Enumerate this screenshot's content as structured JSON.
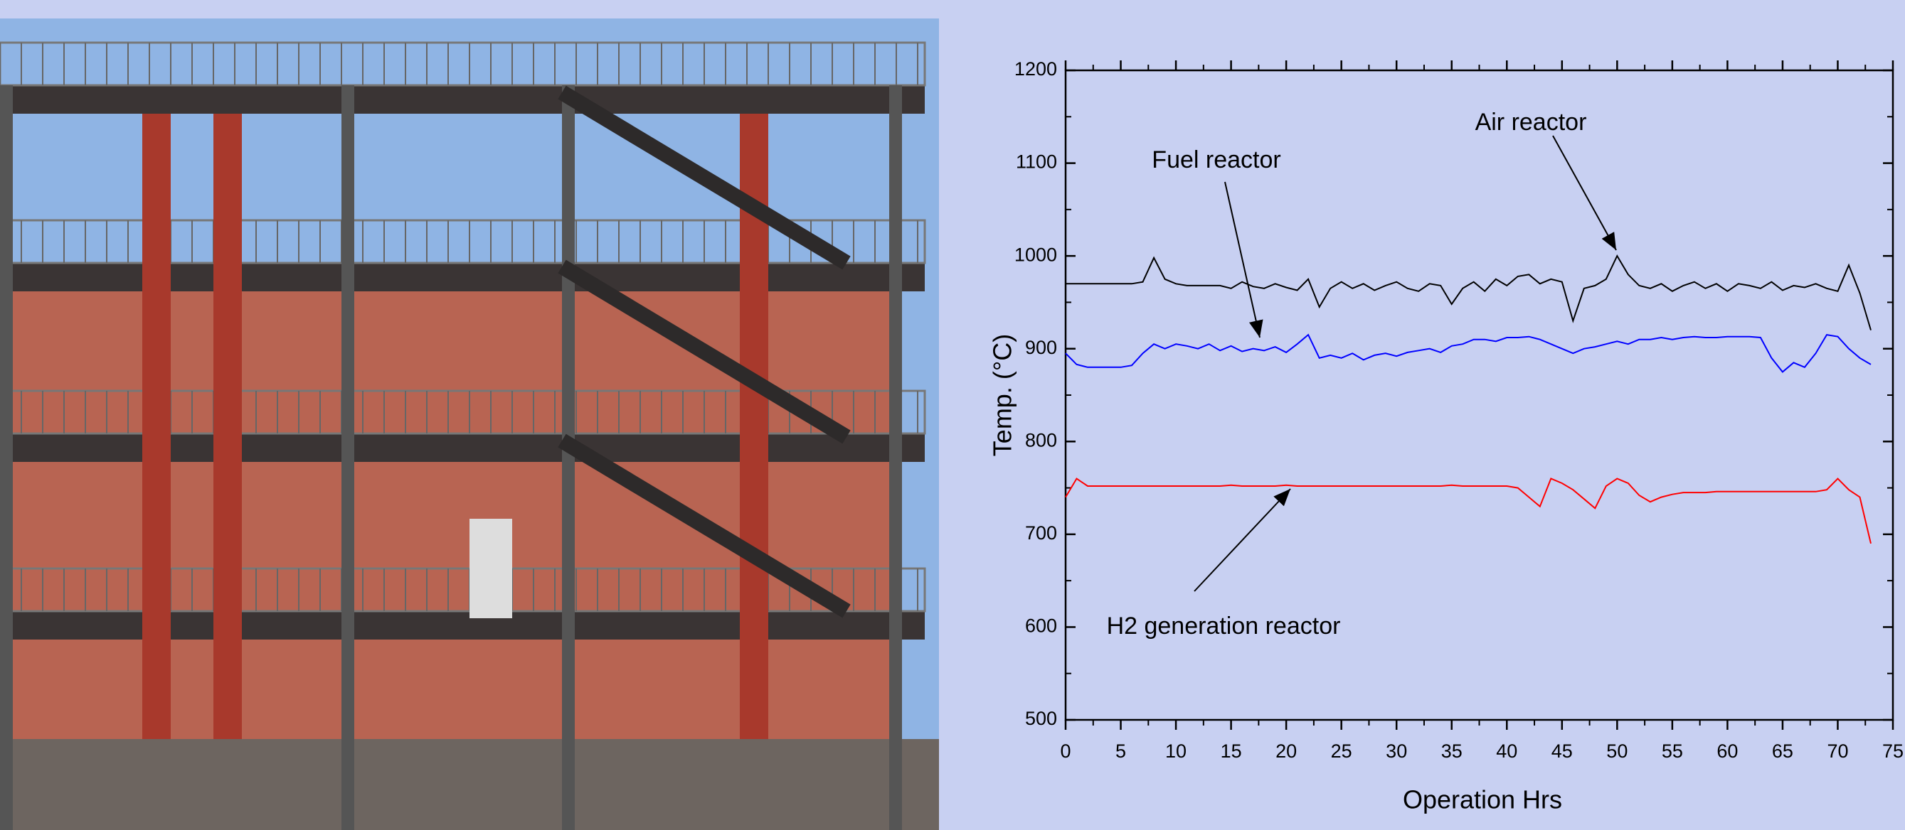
{
  "chart_data": {
    "type": "line",
    "xlabel": "Operation Hrs",
    "ylabel": "Temp. (°C)",
    "x": [
      0,
      1,
      2,
      3,
      4,
      5,
      6,
      7,
      8,
      9,
      10,
      11,
      12,
      13,
      14,
      15,
      16,
      17,
      18,
      19,
      20,
      21,
      22,
      23,
      24,
      25,
      26,
      27,
      28,
      29,
      30,
      31,
      32,
      33,
      34,
      35,
      36,
      37,
      38,
      39,
      40,
      41,
      42,
      43,
      44,
      45,
      46,
      47,
      48,
      49,
      50,
      51,
      52,
      53,
      54,
      55,
      56,
      57,
      58,
      59,
      60,
      61,
      62,
      63,
      64,
      65,
      66,
      67,
      68,
      69,
      70,
      71,
      72,
      73
    ],
    "series": [
      {
        "color": "#000000",
        "values": [
          970,
          970,
          970,
          970,
          970,
          970,
          970,
          972,
          998,
          975,
          970,
          968,
          968,
          968,
          968,
          965,
          972,
          967,
          965,
          970,
          966,
          963,
          975,
          945,
          965,
          972,
          965,
          970,
          963,
          968,
          972,
          965,
          962,
          970,
          968,
          948,
          965,
          972,
          962,
          975,
          968,
          978,
          980,
          970,
          975,
          972,
          930,
          965,
          968,
          975,
          1000,
          980,
          968,
          965,
          970,
          962,
          968,
          972,
          965,
          970,
          962,
          970,
          968,
          965,
          972,
          963,
          968,
          966,
          970,
          965,
          962,
          990,
          960,
          920
        ]
      },
      {
        "color": "#0000ff",
        "values": [
          895,
          883,
          880,
          880,
          880,
          880,
          882,
          895,
          905,
          900,
          905,
          903,
          900,
          905,
          898,
          903,
          897,
          900,
          898,
          902,
          896,
          905,
          915,
          890,
          893,
          890,
          895,
          888,
          893,
          895,
          892,
          896,
          898,
          900,
          896,
          903,
          905,
          910,
          910,
          908,
          912,
          912,
          913,
          910,
          905,
          900,
          895,
          900,
          902,
          905,
          908,
          905,
          910,
          910,
          912,
          910,
          912,
          913,
          912,
          912,
          913,
          913,
          913,
          912,
          890,
          875,
          885,
          880,
          895,
          915,
          913,
          900,
          890,
          883
        ]
      },
      {
        "color": "#ff0000",
        "values": [
          740,
          760,
          752,
          752,
          752,
          752,
          752,
          752,
          752,
          752,
          752,
          752,
          752,
          752,
          752,
          753,
          752,
          752,
          752,
          752,
          753,
          752,
          752,
          752,
          752,
          752,
          752,
          752,
          752,
          752,
          752,
          752,
          752,
          752,
          752,
          753,
          752,
          752,
          752,
          752,
          752,
          750,
          740,
          730,
          760,
          755,
          748,
          738,
          728,
          752,
          760,
          755,
          742,
          735,
          740,
          743,
          745,
          745,
          745,
          746,
          746,
          746,
          746,
          746,
          746,
          746,
          746,
          746,
          746,
          748,
          760,
          748,
          740,
          690
        ]
      }
    ],
    "annotations": [
      "Air reactor",
      "Fuel reactor",
      "H2 generation reactor"
    ],
    "xlim": [
      0,
      75
    ],
    "xticks": [
      0,
      5,
      10,
      15,
      20,
      25,
      30,
      35,
      40,
      45,
      50,
      55,
      60,
      65,
      70,
      75
    ],
    "ylim": [
      500,
      1200
    ],
    "yticks": [
      500,
      600,
      700,
      800,
      900,
      1000,
      1100,
      1200
    ]
  }
}
